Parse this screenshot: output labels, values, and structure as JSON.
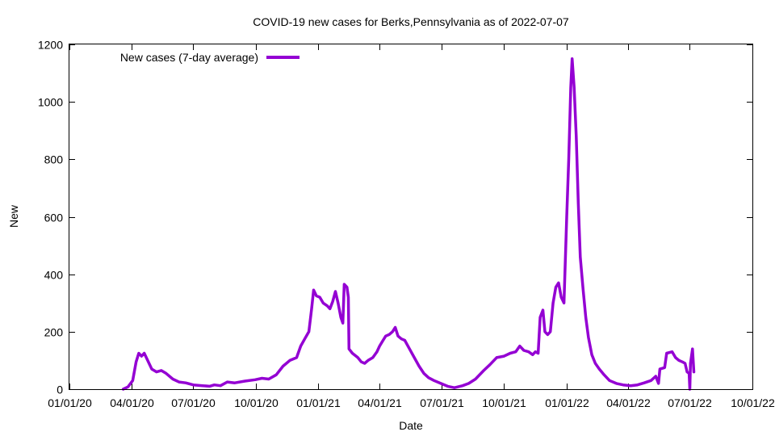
{
  "chart_data": {
    "type": "line",
    "title": "COVID-19 new cases for Berks,Pennsylvania as of 2022-07-07",
    "xlabel": "Date",
    "ylabel": "New",
    "ylim": [
      0,
      1200
    ],
    "yticks": [
      0,
      200,
      400,
      600,
      800,
      1000,
      1200
    ],
    "xlim": [
      "2020-01-01",
      "2022-10-01"
    ],
    "xticks": [
      "2020-01-01",
      "2020-04-01",
      "2020-07-01",
      "2020-10-01",
      "2021-01-01",
      "2021-04-01",
      "2021-07-01",
      "2021-10-01",
      "2022-01-01",
      "2022-04-01",
      "2022-07-01",
      "2022-10-01"
    ],
    "xtick_labels": [
      "01/01/20",
      "04/01/20",
      "07/01/20",
      "10/01/20",
      "01/01/21",
      "04/01/21",
      "07/01/21",
      "10/01/21",
      "01/01/22",
      "04/01/22",
      "07/01/22",
      "10/01/22"
    ],
    "legend": {
      "position": "top-left"
    },
    "grid": false,
    "series": [
      {
        "name": "New cases (7-day average)",
        "color": "#9400d3",
        "points": [
          [
            "2020-03-20",
            0
          ],
          [
            "2020-03-27",
            8
          ],
          [
            "2020-04-03",
            30
          ],
          [
            "2020-04-08",
            95
          ],
          [
            "2020-04-12",
            125
          ],
          [
            "2020-04-16",
            115
          ],
          [
            "2020-04-20",
            125
          ],
          [
            "2020-04-25",
            100
          ],
          [
            "2020-05-01",
            70
          ],
          [
            "2020-05-08",
            60
          ],
          [
            "2020-05-15",
            65
          ],
          [
            "2020-05-22",
            55
          ],
          [
            "2020-06-01",
            35
          ],
          [
            "2020-06-10",
            25
          ],
          [
            "2020-06-20",
            22
          ],
          [
            "2020-07-01",
            15
          ],
          [
            "2020-07-15",
            12
          ],
          [
            "2020-07-25",
            10
          ],
          [
            "2020-08-01",
            15
          ],
          [
            "2020-08-10",
            12
          ],
          [
            "2020-08-20",
            25
          ],
          [
            "2020-08-31",
            22
          ],
          [
            "2020-09-15",
            28
          ],
          [
            "2020-09-30",
            33
          ],
          [
            "2020-10-10",
            38
          ],
          [
            "2020-10-20",
            35
          ],
          [
            "2020-10-31",
            50
          ],
          [
            "2020-11-10",
            80
          ],
          [
            "2020-11-20",
            100
          ],
          [
            "2020-11-30",
            110
          ],
          [
            "2020-12-06",
            150
          ],
          [
            "2020-12-12",
            175
          ],
          [
            "2020-12-18",
            200
          ],
          [
            "2020-12-22",
            280
          ],
          [
            "2020-12-25",
            345
          ],
          [
            "2020-12-29",
            325
          ],
          [
            "2021-01-03",
            320
          ],
          [
            "2021-01-08",
            300
          ],
          [
            "2021-01-14",
            290
          ],
          [
            "2021-01-18",
            280
          ],
          [
            "2021-01-22",
            305
          ],
          [
            "2021-01-26",
            340
          ],
          [
            "2021-01-30",
            300
          ],
          [
            "2021-02-03",
            250
          ],
          [
            "2021-02-06",
            230
          ],
          [
            "2021-02-08",
            365
          ],
          [
            "2021-02-12",
            355
          ],
          [
            "2021-02-14",
            320
          ],
          [
            "2021-02-15",
            140
          ],
          [
            "2021-02-20",
            125
          ],
          [
            "2021-02-28",
            110
          ],
          [
            "2021-03-05",
            95
          ],
          [
            "2021-03-10",
            90
          ],
          [
            "2021-03-15",
            100
          ],
          [
            "2021-03-22",
            110
          ],
          [
            "2021-03-28",
            130
          ],
          [
            "2021-04-01",
            150
          ],
          [
            "2021-04-06",
            170
          ],
          [
            "2021-04-10",
            185
          ],
          [
            "2021-04-15",
            190
          ],
          [
            "2021-04-20",
            200
          ],
          [
            "2021-04-24",
            215
          ],
          [
            "2021-04-28",
            185
          ],
          [
            "2021-05-03",
            175
          ],
          [
            "2021-05-08",
            170
          ],
          [
            "2021-05-15",
            140
          ],
          [
            "2021-05-22",
            110
          ],
          [
            "2021-05-29",
            80
          ],
          [
            "2021-06-05",
            55
          ],
          [
            "2021-06-12",
            40
          ],
          [
            "2021-06-20",
            30
          ],
          [
            "2021-06-30",
            20
          ],
          [
            "2021-07-10",
            10
          ],
          [
            "2021-07-20",
            5
          ],
          [
            "2021-08-01",
            12
          ],
          [
            "2021-08-10",
            20
          ],
          [
            "2021-08-20",
            35
          ],
          [
            "2021-09-01",
            65
          ],
          [
            "2021-09-10",
            85
          ],
          [
            "2021-09-20",
            110
          ],
          [
            "2021-10-01",
            115
          ],
          [
            "2021-10-10",
            125
          ],
          [
            "2021-10-18",
            130
          ],
          [
            "2021-10-24",
            150
          ],
          [
            "2021-10-30",
            135
          ],
          [
            "2021-11-06",
            130
          ],
          [
            "2021-11-12",
            120
          ],
          [
            "2021-11-16",
            130
          ],
          [
            "2021-11-20",
            125
          ],
          [
            "2021-11-23",
            250
          ],
          [
            "2021-11-27",
            275
          ],
          [
            "2021-11-30",
            200
          ],
          [
            "2021-12-04",
            190
          ],
          [
            "2021-12-08",
            200
          ],
          [
            "2021-12-12",
            300
          ],
          [
            "2021-12-16",
            355
          ],
          [
            "2021-12-20",
            370
          ],
          [
            "2021-12-24",
            320
          ],
          [
            "2021-12-28",
            300
          ],
          [
            "2022-01-01",
            600
          ],
          [
            "2022-01-04",
            800
          ],
          [
            "2022-01-07",
            1050
          ],
          [
            "2022-01-09",
            1150
          ],
          [
            "2022-01-12",
            1050
          ],
          [
            "2022-01-15",
            880
          ],
          [
            "2022-01-18",
            650
          ],
          [
            "2022-01-21",
            460
          ],
          [
            "2022-01-25",
            350
          ],
          [
            "2022-01-29",
            250
          ],
          [
            "2022-02-02",
            180
          ],
          [
            "2022-02-07",
            120
          ],
          [
            "2022-02-12",
            90
          ],
          [
            "2022-02-18",
            70
          ],
          [
            "2022-02-25",
            50
          ],
          [
            "2022-03-05",
            30
          ],
          [
            "2022-03-15",
            20
          ],
          [
            "2022-03-25",
            15
          ],
          [
            "2022-04-05",
            12
          ],
          [
            "2022-04-15",
            15
          ],
          [
            "2022-04-25",
            22
          ],
          [
            "2022-05-05",
            30
          ],
          [
            "2022-05-12",
            45
          ],
          [
            "2022-05-16",
            20
          ],
          [
            "2022-05-18",
            70
          ],
          [
            "2022-05-25",
            75
          ],
          [
            "2022-05-28",
            125
          ],
          [
            "2022-06-05",
            130
          ],
          [
            "2022-06-10",
            110
          ],
          [
            "2022-06-15",
            100
          ],
          [
            "2022-06-20",
            95
          ],
          [
            "2022-06-24",
            90
          ],
          [
            "2022-06-27",
            60
          ],
          [
            "2022-06-30",
            55
          ],
          [
            "2022-07-01",
            0
          ],
          [
            "2022-07-02",
            90
          ],
          [
            "2022-07-05",
            140
          ],
          [
            "2022-07-07",
            60
          ]
        ]
      }
    ]
  }
}
